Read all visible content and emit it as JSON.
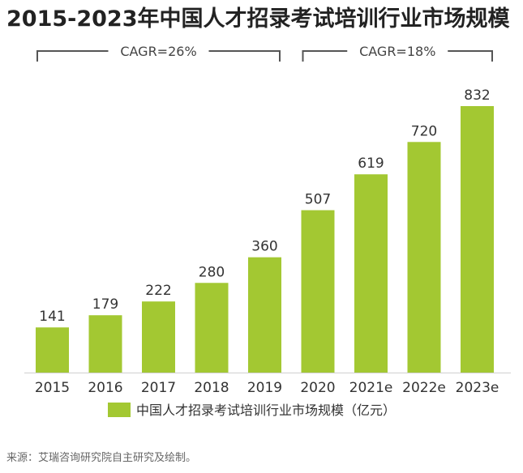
{
  "chart_data": {
    "type": "bar",
    "title": "2015-2023年中国人才招录考试培训行业市场规模",
    "categories": [
      "2015",
      "2016",
      "2017",
      "2018",
      "2019",
      "2020",
      "2021e",
      "2022e",
      "2023e"
    ],
    "series": [
      {
        "name": "中国人才招录考试培训行业市场规模（亿元）",
        "values": [
          141,
          179,
          222,
          280,
          360,
          507,
          619,
          720,
          832
        ]
      }
    ],
    "ylim": [
      0,
      900
    ],
    "grid": false,
    "legend_position": "bottom",
    "bar_color": "#a3c832",
    "annotations": [
      {
        "label": "CAGR=26%",
        "from": "2015",
        "to": "2019"
      },
      {
        "label": "CAGR=18%",
        "from": "2020",
        "to": "2023e"
      }
    ],
    "source": "来源：艾瑞咨询研究院自主研究及绘制。"
  }
}
